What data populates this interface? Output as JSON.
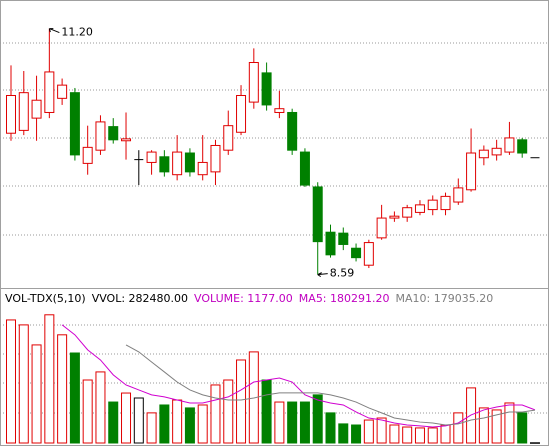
{
  "chart_data": [
    {
      "type": "candlestick",
      "open": [
        10.09,
        10.12,
        10.25,
        10.31,
        10.46,
        10.52,
        9.77,
        9.91,
        10.16,
        10.01,
        9.81,
        9.78,
        9.84,
        9.65,
        9.88,
        9.65,
        9.68,
        9.91,
        10.1,
        10.42,
        10.73,
        10.31,
        10.31,
        9.89,
        9.52,
        9.04,
        9.03,
        8.87,
        8.69,
        8.98,
        9.19,
        9.2,
        9.25,
        9.28,
        9.28,
        9.36,
        9.49,
        9.83,
        9.86,
        9.89,
        10.02,
        9.83
      ],
      "high": [
        10.81,
        10.75,
        10.7,
        11.2,
        10.67,
        10.57,
        10.17,
        10.28,
        10.25,
        10.31,
        9.91,
        9.91,
        9.91,
        10.07,
        9.93,
        10.07,
        10.02,
        10.33,
        10.6,
        10.99,
        10.84,
        10.54,
        10.35,
        9.93,
        9.57,
        9.12,
        9.09,
        8.92,
        8.96,
        9.33,
        9.26,
        9.33,
        9.38,
        9.43,
        9.46,
        9.61,
        10.14,
        9.96,
        10.02,
        10.21,
        10.04,
        9.83
      ],
      "low": [
        10.01,
        10.07,
        10.01,
        10.25,
        10.39,
        9.8,
        9.65,
        9.86,
        9.98,
        9.81,
        9.54,
        9.65,
        9.63,
        9.59,
        9.63,
        9.59,
        9.54,
        9.86,
        10.07,
        10.35,
        10.33,
        10.25,
        9.86,
        9.52,
        8.59,
        8.77,
        8.85,
        8.73,
        8.66,
        8.96,
        9.15,
        9.15,
        9.22,
        9.22,
        9.22,
        9.33,
        9.47,
        9.75,
        9.8,
        9.86,
        9.83,
        9.83
      ],
      "close": [
        10.49,
        10.52,
        10.44,
        10.74,
        10.6,
        9.86,
        9.94,
        10.21,
        10.02,
        10.03,
        9.81,
        9.89,
        9.68,
        9.89,
        9.68,
        9.78,
        9.96,
        10.17,
        10.49,
        10.84,
        10.39,
        10.35,
        9.91,
        9.54,
        8.94,
        8.8,
        8.91,
        8.77,
        8.93,
        9.19,
        9.21,
        9.3,
        9.33,
        9.38,
        9.42,
        9.51,
        9.88,
        9.91,
        9.93,
        10.04,
        9.88,
        9.83
      ],
      "ylim": [
        8.48,
        11.45
      ],
      "up_color": "#e00000",
      "down_color": "#008000",
      "flat_color": "#000000",
      "high_label": "11.20",
      "low_label": "8.59"
    },
    {
      "type": "volume",
      "header": [
        {
          "text": "VOL-TDX(5,10)",
          "color": "#000000"
        },
        {
          "text": "VVOL: 282480.00",
          "color": "#000000"
        },
        {
          "text": "VOLUME: 1177.00",
          "color": "#c000c0"
        },
        {
          "text": "MA5: 180291.20",
          "color": "#c000c0"
        },
        {
          "text": "MA10: 179035.20",
          "color": "#808080"
        }
      ],
      "values": [
        670000,
        643000,
        534000,
        698000,
        589000,
        490000,
        343000,
        387000,
        223000,
        272000,
        245000,
        164000,
        207000,
        234000,
        191000,
        207000,
        316000,
        343000,
        452000,
        496000,
        343000,
        223000,
        223000,
        223000,
        262000,
        164000,
        104000,
        98000,
        125000,
        136000,
        98000,
        87000,
        82000,
        82000,
        98000,
        164000,
        300000,
        191000,
        180000,
        218000,
        164000,
        1177
      ],
      "ylim": [
        0,
        735000
      ],
      "series": [
        {
          "name": "MA5",
          "color": "#d000d0",
          "values": [
            null,
            null,
            null,
            null,
            643000,
            589000,
            507000,
            452000,
            371000,
            316000,
            289000,
            262000,
            251000,
            234000,
            218000,
            218000,
            234000,
            251000,
            289000,
            332000,
            343000,
            354000,
            332000,
            262000,
            234000,
            218000,
            207000,
            169000,
            136000,
            125000,
            109000,
            98000,
            93000,
            87000,
            93000,
            109000,
            153000,
            180000,
            196000,
            207000,
            207000,
            180291.2
          ]
        },
        {
          "name": "MA10",
          "color": "#808080",
          "values": [
            null,
            null,
            null,
            null,
            null,
            null,
            null,
            null,
            null,
            534000,
            496000,
            441000,
            387000,
            332000,
            289000,
            262000,
            245000,
            234000,
            234000,
            245000,
            262000,
            273000,
            273000,
            273000,
            273000,
            262000,
            245000,
            223000,
            191000,
            164000,
            136000,
            125000,
            114000,
            109000,
            98000,
            104000,
            125000,
            136000,
            153000,
            169000,
            169000,
            179035.2
          ]
        }
      ]
    }
  ]
}
